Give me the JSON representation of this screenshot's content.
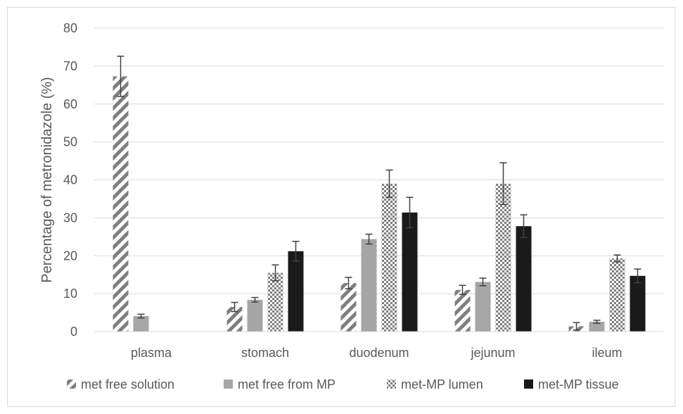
{
  "chart_data": {
    "type": "bar",
    "title": "",
    "xlabel": "",
    "ylabel": "Percentage of metronidazole (%)",
    "ylim": [
      0,
      80
    ],
    "yticks": [
      0,
      10,
      20,
      30,
      40,
      50,
      60,
      70,
      80
    ],
    "grid": "horizontal",
    "legend_position": "bottom",
    "categories": [
      "plasma",
      "stomach",
      "duodenum",
      "jejunum",
      "ileum"
    ],
    "series": [
      {
        "name": "met free solution",
        "pattern": "diagonal-stripes",
        "color": "#7f7f7f",
        "values": [
          67.3,
          6.5,
          12.8,
          11.0,
          1.4
        ],
        "errors": [
          5.3,
          1.2,
          1.5,
          1.2,
          1.0
        ]
      },
      {
        "name": "met free from MP",
        "pattern": "solid",
        "color": "#a6a6a6",
        "values": [
          4.1,
          8.4,
          24.4,
          13.1,
          2.6
        ],
        "errors": [
          0.5,
          0.6,
          1.3,
          1.0,
          0.4
        ]
      },
      {
        "name": "met-MP lumen",
        "pattern": "checkerboard",
        "color": "#7f7f7f",
        "values": [
          null,
          15.5,
          39.0,
          39.0,
          19.3
        ],
        "errors": [
          null,
          2.1,
          3.6,
          5.5,
          0.9
        ]
      },
      {
        "name": "met-MP tissue",
        "pattern": "solid",
        "color": "#1a1a1a",
        "values": [
          null,
          21.2,
          31.4,
          27.8,
          14.7
        ],
        "errors": [
          null,
          2.6,
          4.0,
          3.0,
          1.8
        ]
      }
    ]
  }
}
